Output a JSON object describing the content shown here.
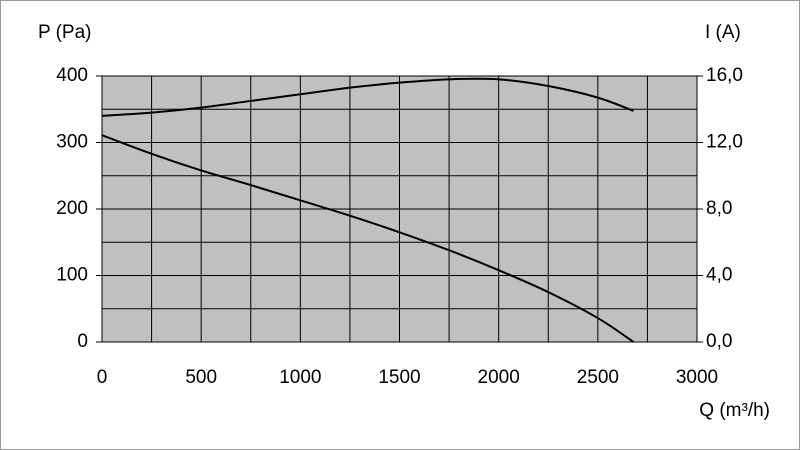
{
  "chart_data": {
    "type": "line",
    "y_label": "P (Pa)",
    "y2_label": "I (A)",
    "x_label": "Q (m³/h)",
    "x": [
      0,
      250,
      500,
      750,
      1000,
      1250,
      1500,
      1750,
      2000,
      2250,
      2500,
      2680
    ],
    "series": [
      {
        "color": "#000000",
        "values": [
          311,
          283,
          258,
          236,
          213,
          190,
          165,
          138,
          108,
          75,
          36,
          0
        ]
      },
      {
        "color": "#000000",
        "axis": "y2",
        "values": [
          13.6,
          13.8,
          14.1,
          14.5,
          14.9,
          15.3,
          15.6,
          15.8,
          15.8,
          15.4,
          14.7,
          13.9
        ]
      }
    ],
    "xlim": [
      0,
      3000
    ],
    "xticks": [
      0,
      500,
      1000,
      1500,
      2000,
      2500,
      3000
    ],
    "ylim": [
      0,
      400
    ],
    "yticks": [
      0,
      100,
      200,
      300,
      400
    ],
    "y2lim": [
      0,
      16
    ],
    "y2ticks": [
      {
        "value": 0,
        "label": "0,0"
      },
      {
        "value": 4,
        "label": "4,0"
      },
      {
        "value": 8,
        "label": "8,0"
      },
      {
        "value": 12,
        "label": "12,0"
      },
      {
        "value": 16,
        "label": "16,0"
      }
    ],
    "grid": true,
    "minor_grid": true,
    "plot_background": "#c0c0c0"
  }
}
